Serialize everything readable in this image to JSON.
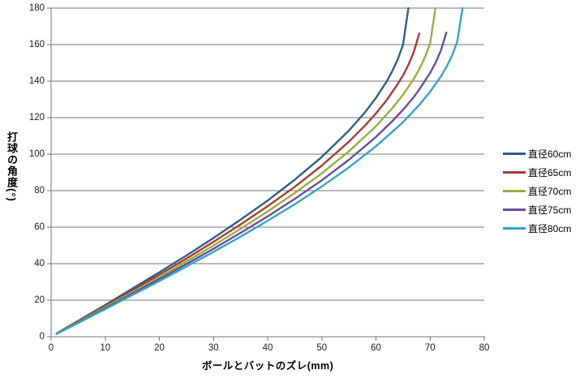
{
  "chart_data": {
    "type": "line",
    "title": "",
    "xlabel": "ボールとバットのズレ(mm)",
    "ylabel": "打球の角度(°)",
    "xlim": [
      0,
      80
    ],
    "ylim": [
      0,
      180
    ],
    "x_ticks": [
      0,
      10,
      20,
      30,
      40,
      50,
      60,
      70,
      80
    ],
    "y_ticks": [
      0,
      20,
      40,
      60,
      80,
      100,
      120,
      140,
      160,
      180
    ],
    "grid": "horizontal",
    "legend_position": "right",
    "axis_color": "#757575",
    "grid_color": "#757575",
    "text_color": "#1a1a1a",
    "series": [
      {
        "name": "直径60cm",
        "color": "#2F5D8C",
        "points": [
          [
            1,
            1.7
          ],
          [
            5,
            8.7
          ],
          [
            10,
            17.4
          ],
          [
            15,
            26.3
          ],
          [
            20,
            35.3
          ],
          [
            25,
            44.5
          ],
          [
            30,
            54.1
          ],
          [
            35,
            64.1
          ],
          [
            40,
            74.6
          ],
          [
            45,
            86.0
          ],
          [
            50,
            98.5
          ],
          [
            55,
            112.9
          ],
          [
            58,
            123.0
          ],
          [
            60,
            130.8
          ],
          [
            62,
            139.9
          ],
          [
            63,
            145.4
          ],
          [
            64,
            151.7
          ],
          [
            65,
            160.0
          ],
          [
            66,
            180.0
          ]
        ]
      },
      {
        "name": "直径65cm",
        "color": "#A93B32",
        "points": [
          [
            1,
            1.7
          ],
          [
            5,
            8.4
          ],
          [
            10,
            16.8
          ],
          [
            15,
            25.3
          ],
          [
            20,
            34.0
          ],
          [
            25,
            42.8
          ],
          [
            30,
            52.0
          ],
          [
            35,
            61.5
          ],
          [
            40,
            71.5
          ],
          [
            45,
            82.1
          ],
          [
            50,
            93.8
          ],
          [
            55,
            106.8
          ],
          [
            58,
            115.7
          ],
          [
            60,
            122.3
          ],
          [
            62,
            129.7
          ],
          [
            64,
            138.3
          ],
          [
            65,
            143.2
          ],
          [
            66,
            148.9
          ],
          [
            67,
            156.0
          ],
          [
            68,
            166.1
          ]
        ]
      },
      {
        "name": "直径70cm",
        "color": "#94B13C",
        "points": [
          [
            1,
            1.6
          ],
          [
            5,
            8.1
          ],
          [
            10,
            16.2
          ],
          [
            15,
            24.4
          ],
          [
            20,
            32.7
          ],
          [
            25,
            41.2
          ],
          [
            30,
            50.0
          ],
          [
            35,
            59.1
          ],
          [
            40,
            68.6
          ],
          [
            45,
            78.7
          ],
          [
            50,
            89.5
          ],
          [
            55,
            101.5
          ],
          [
            60,
            115.3
          ],
          [
            63,
            125.1
          ],
          [
            65,
            132.6
          ],
          [
            67,
            141.3
          ],
          [
            68,
            146.6
          ],
          [
            69,
            152.7
          ],
          [
            70,
            160.7
          ],
          [
            71,
            180.0
          ]
        ]
      },
      {
        "name": "直径75cm",
        "color": "#6A4C9B",
        "points": [
          [
            1,
            1.6
          ],
          [
            5,
            7.8
          ],
          [
            10,
            15.6
          ],
          [
            15,
            23.6
          ],
          [
            20,
            31.6
          ],
          [
            25,
            39.8
          ],
          [
            30,
            48.2
          ],
          [
            35,
            56.9
          ],
          [
            40,
            65.9
          ],
          [
            45,
            75.5
          ],
          [
            50,
            85.7
          ],
          [
            55,
            96.9
          ],
          [
            60,
            109.4
          ],
          [
            63,
            118.0
          ],
          [
            65,
            124.3
          ],
          [
            67,
            131.3
          ],
          [
            68,
            135.4
          ],
          [
            70,
            144.5
          ],
          [
            71,
            150.0
          ],
          [
            72,
            156.8
          ],
          [
            73,
            166.6
          ]
        ]
      },
      {
        "name": "直径80cm",
        "color": "#31A6C7",
        "points": [
          [
            1,
            1.5
          ],
          [
            5,
            7.5
          ],
          [
            10,
            15.1
          ],
          [
            15,
            22.8
          ],
          [
            20,
            30.5
          ],
          [
            25,
            38.4
          ],
          [
            30,
            46.5
          ],
          [
            35,
            54.8
          ],
          [
            40,
            63.5
          ],
          [
            45,
            72.6
          ],
          [
            50,
            82.3
          ],
          [
            55,
            92.7
          ],
          [
            60,
            104.3
          ],
          [
            65,
            117.5
          ],
          [
            68,
            127.0
          ],
          [
            70,
            134.2
          ],
          [
            72,
            142.6
          ],
          [
            73,
            147.7
          ],
          [
            74,
            153.6
          ],
          [
            75,
            161.4
          ],
          [
            76,
            180.0
          ]
        ]
      }
    ]
  }
}
